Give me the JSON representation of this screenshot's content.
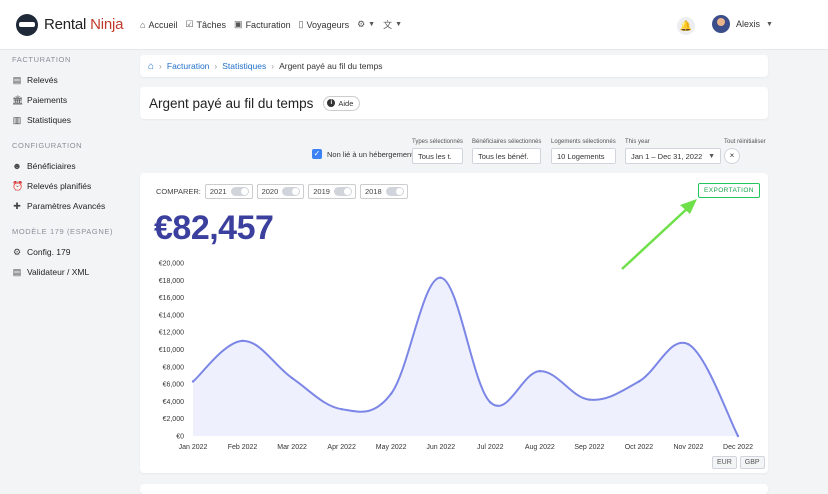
{
  "app": {
    "brand_a": "Rental",
    "brand_b": "Ninja"
  },
  "nav": [
    {
      "icon": "home-icon",
      "glyph": "⌂",
      "label": "Accueil"
    },
    {
      "icon": "checkbox-icon",
      "glyph": "☑",
      "label": "Tâches"
    },
    {
      "icon": "money-icon",
      "glyph": "▣",
      "label": "Facturation"
    },
    {
      "icon": "luggage-icon",
      "glyph": "▯",
      "label": "Voyageurs"
    },
    {
      "icon": "gear-icon",
      "glyph": "⚙",
      "label": ""
    },
    {
      "icon": "translate-icon",
      "glyph": "文",
      "label": ""
    }
  ],
  "user": {
    "name": "Alexis"
  },
  "sidebar": {
    "sections": [
      {
        "title": "FACTURATION",
        "items": [
          {
            "icon": "document-icon",
            "glyph": "▤",
            "label": "Relevés"
          },
          {
            "icon": "bank-icon",
            "glyph": "🏛",
            "label": "Paiements"
          },
          {
            "icon": "chart-icon",
            "glyph": "▥",
            "label": "Statistiques"
          }
        ]
      },
      {
        "title": "CONFIGURATION",
        "items": [
          {
            "icon": "users-icon",
            "glyph": "☻",
            "label": "Bénéficiaires"
          },
          {
            "icon": "alarm-clock-icon",
            "glyph": "⏰",
            "label": "Relevés planifiés"
          },
          {
            "icon": "puzzle-icon",
            "glyph": "✚",
            "label": "Paramètres Avancés"
          }
        ]
      },
      {
        "title": "MODÈLE 179 (ESPAGNE)",
        "items": [
          {
            "icon": "cog-icon",
            "glyph": "⚙",
            "label": "Config. 179"
          },
          {
            "icon": "document-icon",
            "glyph": "▤",
            "label": "Validateur / XML"
          }
        ]
      }
    ]
  },
  "breadcrumb": {
    "items": [
      "Facturation",
      "Statistiques"
    ],
    "current": "Argent payé au fil du temps"
  },
  "page": {
    "title": "Argent payé au fil du temps",
    "help": "Aide"
  },
  "filters": {
    "unlinked": "Non lié à un hébergement",
    "types": {
      "label": "Types sélectionnés",
      "value": "Tous les t."
    },
    "beneficiaries": {
      "label": "Bénéficiaires sélectionnés",
      "value": "Tous les bénéf."
    },
    "listings": {
      "label": "Logements sélectionnés",
      "value": "10 Logements"
    },
    "period": {
      "label": "This year",
      "value": "Jan 1 – Dec 31, 2022"
    },
    "reset": {
      "label": "Tout réinitialiser"
    }
  },
  "compare": {
    "label": "COMPARER:",
    "years": [
      "2021",
      "2020",
      "2019",
      "2018"
    ]
  },
  "export_label": "EXPORTATION",
  "total": "€82,457",
  "currencies": [
    "EUR",
    "GBP"
  ],
  "colors": {
    "line": "#7b86e6",
    "fill": "#eef0fd",
    "total": "#3b3f9e",
    "accent": "#1f6fc9",
    "export": "#22c55e",
    "arrow": "#6fe04a"
  },
  "chart_data": {
    "type": "area",
    "categories": [
      "Jan 2022",
      "Feb 2022",
      "Mar 2022",
      "Apr 2022",
      "May 2022",
      "Jun 2022",
      "Jul 2022",
      "Aug 2022",
      "Sep 2022",
      "Oct 2022",
      "Nov 2022",
      "Dec 2022"
    ],
    "series": [
      {
        "values": [
          6300,
          11000,
          6700,
          3100,
          4900,
          18300,
          3900,
          7500,
          4200,
          6300,
          10600,
          0
        ]
      }
    ],
    "yticks": [
      "€0",
      "€2,000",
      "€4,000",
      "€6,000",
      "€8,000",
      "€10,000",
      "€12,000",
      "€14,000",
      "€16,000",
      "€18,000",
      "€20,000"
    ],
    "ylim": [
      0,
      20000
    ],
    "grid": false
  }
}
